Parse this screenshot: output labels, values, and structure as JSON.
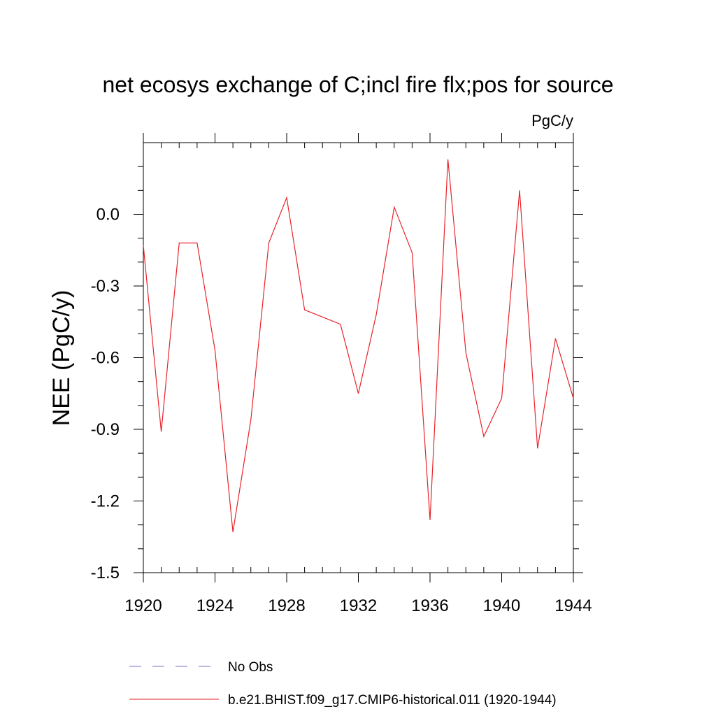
{
  "chart_data": {
    "type": "line",
    "title": "net ecosys exchange of C;incl fire flx;pos for source",
    "units_label": "PgC/y",
    "ylabel": "NEE  (PgC/y)",
    "xlabel": "",
    "xlim": [
      1920,
      1944
    ],
    "ylim": [
      -1.5,
      0.3
    ],
    "x_ticks": [
      1920,
      1924,
      1928,
      1932,
      1936,
      1940,
      1944
    ],
    "x_tick_labels": [
      "1920",
      "1924",
      "1928",
      "1932",
      "1936",
      "1940",
      "1944"
    ],
    "y_ticks": [
      0.0,
      -0.3,
      -0.6,
      -0.9,
      -1.2,
      -1.5
    ],
    "y_tick_labels": [
      "0.0",
      "-0.3",
      "-0.6",
      "-0.9",
      "-1.2",
      "-1.5"
    ],
    "grid": false,
    "legend_position": "bottom",
    "series": [
      {
        "name": "No Obs",
        "color": "#7b74c4",
        "style": "dashed",
        "x": [],
        "y": []
      },
      {
        "name": "b.e21.BHIST.f09_g17.CMIP6-historical.011 (1920-1944)",
        "color": "#e8232a",
        "style": "solid",
        "x": [
          1920,
          1921,
          1922,
          1923,
          1924,
          1925,
          1926,
          1927,
          1928,
          1929,
          1930,
          1931,
          1932,
          1933,
          1934,
          1935,
          1936,
          1937,
          1938,
          1939,
          1940,
          1941,
          1942,
          1943,
          1944
        ],
        "y": [
          -0.13,
          -0.91,
          -0.12,
          -0.12,
          -0.57,
          -1.33,
          -0.86,
          -0.12,
          0.07,
          -0.4,
          -0.43,
          -0.46,
          -0.75,
          -0.42,
          0.03,
          -0.16,
          -1.28,
          0.23,
          -0.58,
          -0.93,
          -0.77,
          0.1,
          -0.98,
          -0.52,
          -0.77
        ]
      }
    ]
  }
}
